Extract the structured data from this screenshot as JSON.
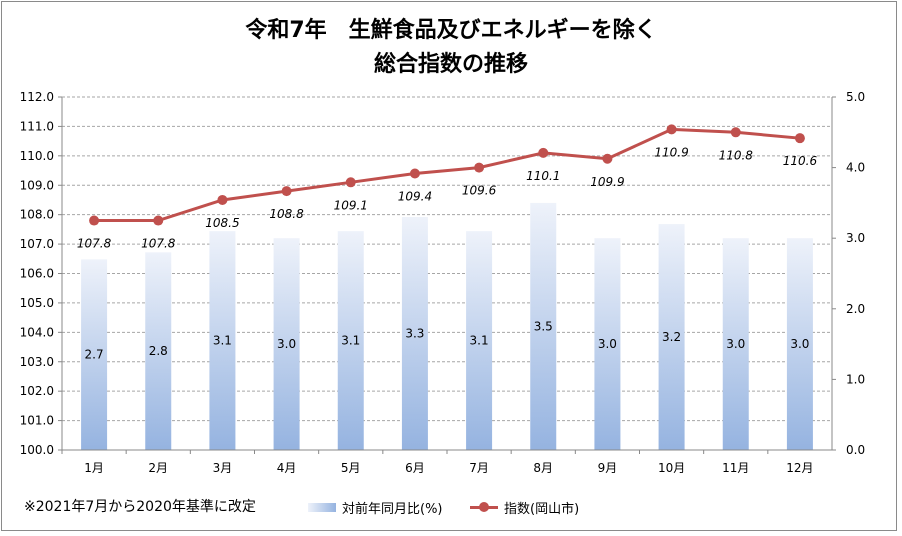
{
  "chart_data": {
    "type": "bar+line",
    "title_lines": [
      "令和7年　生鮮食品及びエネルギーを除く",
      "総合指数の推移"
    ],
    "categories": [
      "1月",
      "2月",
      "3月",
      "4月",
      "5月",
      "6月",
      "7月",
      "8月",
      "9月",
      "10月",
      "11月",
      "12月"
    ],
    "series": [
      {
        "name": "対前年同月比(%)",
        "type": "bar",
        "axis": "right",
        "values": [
          2.7,
          2.8,
          3.1,
          3.0,
          3.1,
          3.3,
          3.1,
          3.5,
          3.0,
          3.2,
          3.0,
          3.0
        ],
        "labels": [
          "2.7",
          "2.8",
          "3.1",
          "3.0",
          "3.1",
          "3.3",
          "3.1",
          "3.5",
          "3.0",
          "3.2",
          "3.0",
          "3.0"
        ]
      },
      {
        "name": "指数(岡山市)",
        "type": "line",
        "axis": "left",
        "values": [
          107.8,
          107.8,
          108.5,
          108.8,
          109.1,
          109.4,
          109.6,
          110.1,
          109.9,
          110.9,
          110.8,
          110.6
        ],
        "labels": [
          "107.8",
          "107.8",
          "108.5",
          "108.8",
          "109.1",
          "109.4",
          "109.6",
          "110.1",
          "109.9",
          "110.9",
          "110.8",
          "110.6"
        ]
      }
    ],
    "y_left": {
      "range": [
        100,
        112
      ],
      "ticks": [
        "100.0",
        "101.0",
        "102.0",
        "103.0",
        "104.0",
        "105.0",
        "106.0",
        "107.0",
        "108.0",
        "109.0",
        "110.0",
        "111.0",
        "112.0"
      ]
    },
    "y_right": {
      "range": [
        0,
        5
      ],
      "ticks": [
        "0.0",
        "1.0",
        "2.0",
        "3.0",
        "4.0",
        "5.0"
      ]
    },
    "grid": true,
    "legend_position": "bottom",
    "colors": {
      "bar_top": "#eef2fa",
      "bar_bottom": "#95b3e0",
      "line": "#c0504d",
      "grid": "#a6a6a6"
    }
  },
  "note": "※2021年7月から2020年基準に改定"
}
